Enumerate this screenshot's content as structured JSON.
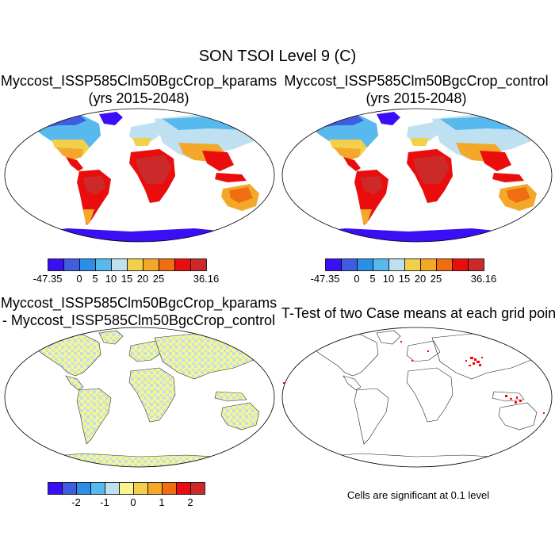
{
  "title": "SON TSOI Level 9 (C)",
  "panels": [
    {
      "id": "p1",
      "title_lines": [
        "Myccost_ISSP585Clm50BgcCrop_kparams",
        "(yrs 2015-2048)"
      ]
    },
    {
      "id": "p2",
      "title_lines": [
        "Myccost_ISSP585Clm50BgcCrop_control",
        "(yrs 2015-2048)"
      ]
    },
    {
      "id": "p3",
      "title_lines": [
        "Myccost_ISSP585Clm50BgcCrop_kparams",
        "- Myccost_ISSP585Clm50BgcCrop_control"
      ]
    },
    {
      "id": "p4",
      "title_lines": [
        "T-Test of two Case means at each grid point"
      ]
    }
  ],
  "colorbar_abs": {
    "colors": [
      "#3a0ff5",
      "#3f5ddf",
      "#2b8fe8",
      "#57b9ee",
      "#bfe0f0",
      "#f2d04b",
      "#f4a82a",
      "#f06d10",
      "#ea0d0d",
      "#cc2a2a"
    ],
    "labels": [
      {
        "text": "-47.35",
        "edge": 0
      },
      {
        "text": "0",
        "edge": 2
      },
      {
        "text": "5",
        "edge": 3
      },
      {
        "text": "10",
        "edge": 4
      },
      {
        "text": "15",
        "edge": 5
      },
      {
        "text": "20",
        "edge": 6
      },
      {
        "text": "25",
        "edge": 7
      },
      {
        "text": "36.16",
        "edge": 10
      }
    ]
  },
  "colorbar_diff": {
    "colors": [
      "#3a0ff5",
      "#3f5ddf",
      "#2b8fe8",
      "#57b9ee",
      "#bfe0f0",
      "#f8f48e",
      "#f2d04b",
      "#f4a82a",
      "#f06d10",
      "#ea0d0d",
      "#cc2a2a"
    ],
    "labels": [
      {
        "text": "-2",
        "edge": 2
      },
      {
        "text": "-1",
        "edge": 4
      },
      {
        "text": "0",
        "edge": 6
      },
      {
        "text": "1",
        "edge": 8
      },
      {
        "text": "2",
        "edge": 10
      }
    ]
  },
  "significance_note": "Cells are significant at 0.1 level",
  "map_colors": {
    "cold_deep": "#3a0ff5",
    "cold": "#3f5ddf",
    "cool": "#2b8fe8",
    "mild": "#57b9ee",
    "pale": "#bfe0f0",
    "warm_light": "#f2d04b",
    "warm": "#f4a82a",
    "hot": "#f06d10",
    "very_hot": "#ea0d0d",
    "hottest": "#cc2a2a",
    "diff_neutral": "#f8f48e",
    "diff_cool": "#bfe0f0",
    "signif": "#ff0000"
  }
}
